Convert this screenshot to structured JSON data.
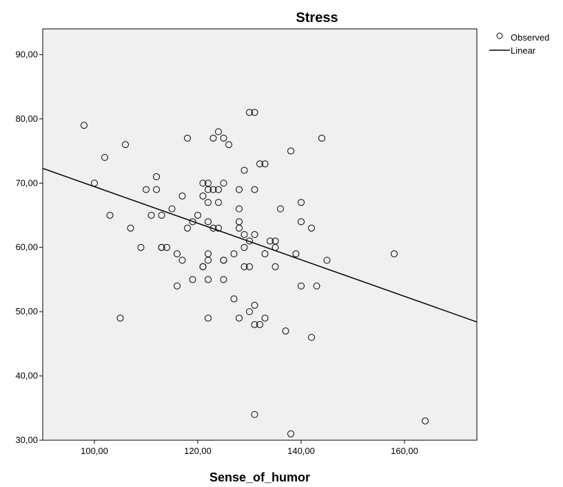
{
  "chart_data": {
    "type": "scatter",
    "title": "Stress",
    "xlabel": "Sense_of_humor",
    "ylabel": "",
    "xlim": [
      90,
      174
    ],
    "ylim": [
      30,
      94
    ],
    "xticks": [
      100,
      120,
      140,
      160
    ],
    "xtick_labels": [
      "100,00",
      "120,00",
      "140,00",
      "160,00"
    ],
    "yticks": [
      30,
      40,
      50,
      60,
      70,
      80,
      90
    ],
    "ytick_labels": [
      "30,00",
      "40,00",
      "50,00",
      "60,00",
      "70,00",
      "80,00",
      "90,00"
    ],
    "grid": false,
    "legend_position": "top-right",
    "legend": [
      "Observed",
      "Linear"
    ],
    "colors": {
      "plot_background": "#f0f0f0",
      "marker": "#000000",
      "line": "#000000"
    },
    "series": [
      {
        "name": "Observed",
        "type": "scatter",
        "points": [
          [
            98,
            79
          ],
          [
            100,
            70
          ],
          [
            102,
            74
          ],
          [
            103,
            65
          ],
          [
            105,
            49
          ],
          [
            106,
            76
          ],
          [
            107,
            63
          ],
          [
            109,
            60
          ],
          [
            110,
            69
          ],
          [
            111,
            65
          ],
          [
            112,
            71
          ],
          [
            112,
            69
          ],
          [
            113,
            65
          ],
          [
            113,
            60
          ],
          [
            113,
            60
          ],
          [
            114,
            60
          ],
          [
            115,
            66
          ],
          [
            116,
            59
          ],
          [
            116,
            54
          ],
          [
            117,
            68
          ],
          [
            117,
            58
          ],
          [
            118,
            77
          ],
          [
            118,
            63
          ],
          [
            119,
            64
          ],
          [
            119,
            55
          ],
          [
            120,
            65
          ],
          [
            121,
            70
          ],
          [
            121,
            68
          ],
          [
            121,
            57
          ],
          [
            121,
            57
          ],
          [
            122,
            70
          ],
          [
            122,
            69
          ],
          [
            122,
            67
          ],
          [
            122,
            64
          ],
          [
            122,
            59
          ],
          [
            122,
            58
          ],
          [
            122,
            55
          ],
          [
            122,
            49
          ],
          [
            123,
            77
          ],
          [
            123,
            69
          ],
          [
            123,
            63
          ],
          [
            124,
            78
          ],
          [
            124,
            69
          ],
          [
            124,
            67
          ],
          [
            124,
            63
          ],
          [
            125,
            77
          ],
          [
            125,
            70
          ],
          [
            125,
            58
          ],
          [
            125,
            58
          ],
          [
            125,
            55
          ],
          [
            126,
            76
          ],
          [
            127,
            59
          ],
          [
            127,
            52
          ],
          [
            128,
            69
          ],
          [
            128,
            66
          ],
          [
            128,
            64
          ],
          [
            128,
            63
          ],
          [
            128,
            49
          ],
          [
            129,
            72
          ],
          [
            129,
            62
          ],
          [
            129,
            60
          ],
          [
            129,
            57
          ],
          [
            130,
            81
          ],
          [
            130,
            61
          ],
          [
            130,
            57
          ],
          [
            130,
            50
          ],
          [
            131,
            81
          ],
          [
            131,
            69
          ],
          [
            131,
            62
          ],
          [
            131,
            51
          ],
          [
            131,
            48
          ],
          [
            131,
            34
          ],
          [
            132,
            73
          ],
          [
            132,
            48
          ],
          [
            133,
            73
          ],
          [
            133,
            59
          ],
          [
            133,
            49
          ],
          [
            134,
            61
          ],
          [
            135,
            61
          ],
          [
            135,
            60
          ],
          [
            135,
            57
          ],
          [
            136,
            66
          ],
          [
            137,
            47
          ],
          [
            138,
            75
          ],
          [
            138,
            31
          ],
          [
            139,
            59
          ],
          [
            140,
            67
          ],
          [
            140,
            64
          ],
          [
            140,
            54
          ],
          [
            142,
            63
          ],
          [
            142,
            46
          ],
          [
            143,
            54
          ],
          [
            144,
            77
          ],
          [
            145,
            58
          ],
          [
            158,
            59
          ],
          [
            164,
            33
          ]
        ]
      },
      {
        "name": "Linear",
        "type": "line",
        "points": [
          [
            90,
            72.3
          ],
          [
            174,
            48.4
          ]
        ]
      }
    ]
  }
}
